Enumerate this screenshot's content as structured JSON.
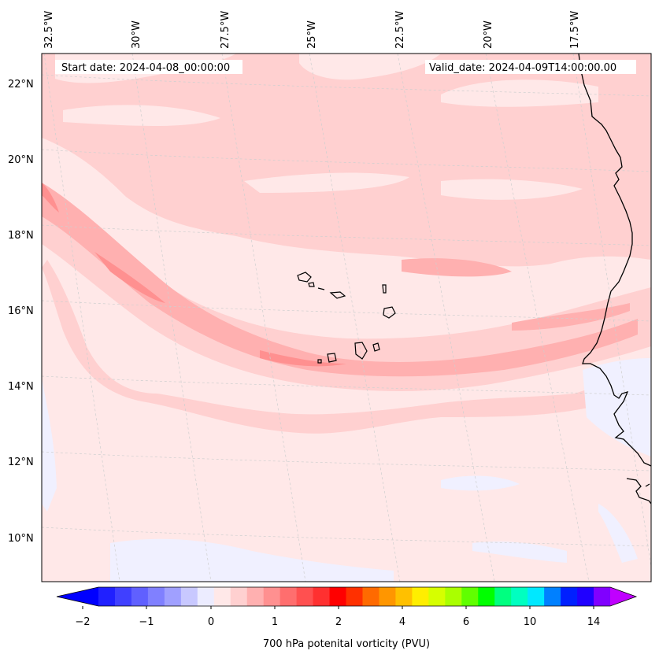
{
  "header": {
    "start_date": "Start date: 2024-04-08_00:00:00",
    "valid_date": "Valid_date: 2024-04-09T14:00:00.00"
  },
  "map": {
    "lon_labels": [
      "32.5°W",
      "30°W",
      "27.5°W",
      "25°W",
      "22.5°W",
      "20°W",
      "17.5°W"
    ],
    "lat_labels": [
      "22°N",
      "20°N",
      "18°N",
      "16°N",
      "14°N",
      "12°N",
      "10°N"
    ],
    "region": "Cape Verde / West African coast",
    "field": "700 hPa potential vorticity"
  },
  "colorbar": {
    "title": "700 hPa potenital vorticity (PVU)",
    "tick_labels": [
      "−2",
      "−1",
      "0",
      "1",
      "2",
      "4",
      "6",
      "10",
      "14"
    ],
    "colors": [
      "#0000ff",
      "#2020ff",
      "#4040ff",
      "#6060ff",
      "#8080ff",
      "#a0a0ff",
      "#c8c8ff",
      "#ececff",
      "#ffe8e8",
      "#ffd0d0",
      "#ffb0b0",
      "#ff9090",
      "#ff6e6e",
      "#ff5050",
      "#ff3030",
      "#ff0000",
      "#ff3000",
      "#ff6a00",
      "#ff9600",
      "#ffc000",
      "#ffee00",
      "#d6ff00",
      "#aaff00",
      "#60ff00",
      "#00ff00",
      "#00ff80",
      "#00ffc0",
      "#00e8ff",
      "#0080ff",
      "#0020ff",
      "#2000ff",
      "#8000ff",
      "#c000ff"
    ]
  }
}
